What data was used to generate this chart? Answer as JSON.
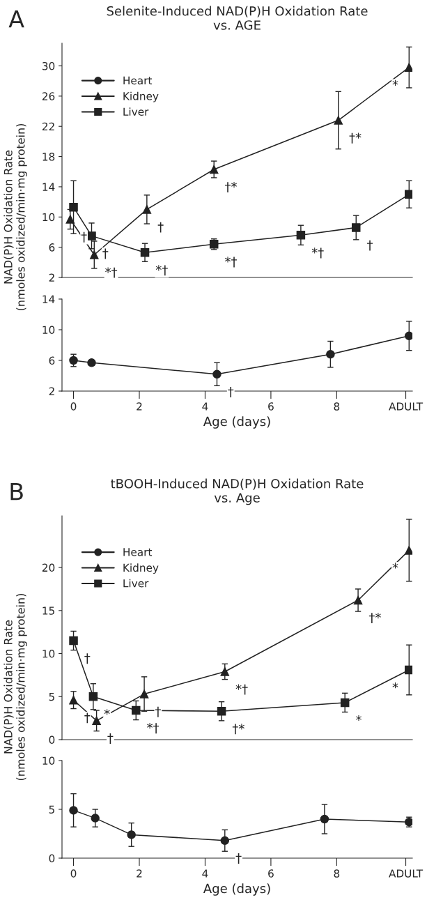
{
  "chart_data": [
    {
      "type": "line",
      "title": "Selenite-Induced NAD(P)H Oxidation Rate\nvs. AGE",
      "ylabel": "NAD(P)H Oxidation Rate\n(nmoles oxidized/min·mg protein)",
      "xlim": [
        -0.35,
        10.3
      ],
      "ylim": [
        2,
        33
      ],
      "yticks": [
        2,
        6,
        10,
        14,
        18,
        22,
        26,
        30
      ],
      "tick_labels": "y",
      "legend": "top left",
      "grid": false,
      "series": [
        {
          "name": "Kidney",
          "color": "#222222",
          "marker": "triangle",
          "x": [
            -0.1,
            0.63,
            2.23,
            4.27,
            8.05,
            10.2
          ],
          "values": [
            9.7,
            5.0,
            11.0,
            16.3,
            22.8,
            29.8
          ],
          "errors": [
            1.3,
            1.8,
            1.9,
            1.1,
            3.8,
            2.7
          ]
        },
        {
          "name": "Liver",
          "color": "#222222",
          "marker": "square",
          "x": [
            0.0,
            0.55,
            2.17,
            4.27,
            6.91,
            8.59,
            10.2
          ],
          "values": [
            11.3,
            7.5,
            5.3,
            6.4,
            7.6,
            8.6,
            13.0
          ],
          "errors": [
            3.5,
            1.7,
            1.2,
            0.7,
            1.3,
            1.6,
            1.8
          ]
        }
      ],
      "annotations": [
        "A",
        {
          "text": "†",
          "x": -0.1,
          "y": 9.7
        },
        {
          "text": "†",
          "x": 0.55,
          "y": 7.5
        },
        {
          "text": "*†",
          "x": 0.63,
          "y": 5.0
        },
        {
          "text": "†",
          "x": 2.23,
          "y": 11.0
        },
        {
          "text": "*†",
          "x": 2.17,
          "y": 5.3
        },
        {
          "text": "†*",
          "x": 4.27,
          "y": 16.3
        },
        {
          "text": "*†",
          "x": 4.27,
          "y": 6.4
        },
        {
          "text": "*†",
          "x": 6.91,
          "y": 7.6
        },
        {
          "text": "†*",
          "x": 8.05,
          "y": 22.8
        },
        {
          "text": "†",
          "x": 8.59,
          "y": 8.6
        },
        {
          "text": "*",
          "x": 10.2,
          "y": 29.8
        }
      ]
    },
    {
      "type": "line",
      "xlabel": "Age (days)",
      "xlim": [
        -0.35,
        10.3
      ],
      "ylim": [
        2,
        14
      ],
      "yticks": [
        2,
        6,
        10,
        14
      ],
      "xticks": [
        0,
        2,
        4,
        6,
        8,
        {
          "value": 10.1,
          "label": "ADULT"
        }
      ],
      "grid": false,
      "series": [
        {
          "name": "Heart",
          "color": "#222222",
          "marker": "circle",
          "x": [
            0.0,
            0.55,
            4.36,
            7.81,
            10.2
          ],
          "values": [
            6.0,
            5.7,
            4.2,
            6.8,
            9.2
          ],
          "errors": [
            0.8,
            0.3,
            1.5,
            1.7,
            1.9
          ]
        }
      ],
      "annotations": [
        {
          "text": "†",
          "x": 4.36,
          "y": 4.2
        }
      ]
    },
    {
      "type": "line",
      "title": "tBOOH-Induced NAD(P)H Oxidation Rate\nvs. Age",
      "ylabel": "NAD(P)H Oxidation Rate\n(nmoles oxidized/min·mg protein)",
      "xlim": [
        -0.35,
        10.3
      ],
      "ylim": [
        0,
        26
      ],
      "yticks": [
        0,
        5,
        10,
        15,
        20
      ],
      "tick_labels": "y",
      "legend": "top left",
      "grid": false,
      "series": [
        {
          "name": "Kidney",
          "color": "#222222",
          "marker": "triangle",
          "x": [
            0.0,
            0.7,
            2.15,
            4.6,
            8.65,
            10.2
          ],
          "values": [
            4.6,
            2.2,
            5.3,
            7.9,
            16.2,
            22.0
          ],
          "errors": [
            1.0,
            1.2,
            2.0,
            0.9,
            1.3,
            3.6
          ]
        },
        {
          "name": "Liver",
          "color": "#222222",
          "marker": "square",
          "x": [
            0.0,
            0.6,
            1.9,
            4.5,
            8.25,
            10.2
          ],
          "values": [
            11.5,
            5.0,
            3.4,
            3.3,
            4.3,
            8.1
          ],
          "errors": [
            1.1,
            1.5,
            1.1,
            1.1,
            1.1,
            2.9
          ]
        }
      ],
      "annotations": [
        "B",
        {
          "text": "†",
          "x": 0.0,
          "y": 11.5
        },
        {
          "text": "*",
          "x": 0.6,
          "y": 5.0
        },
        {
          "text": "†",
          "x": 0.0,
          "y": 4.6
        },
        {
          "text": "†",
          "x": 0.7,
          "y": 2.2
        },
        {
          "text": "†",
          "x": 2.15,
          "y": 5.3
        },
        {
          "text": "*†",
          "x": 1.9,
          "y": 3.4
        },
        {
          "text": "*†",
          "x": 4.6,
          "y": 7.9
        },
        {
          "text": "†*",
          "x": 4.5,
          "y": 3.3
        },
        {
          "text": "†*",
          "x": 8.65,
          "y": 16.2
        },
        {
          "text": "*",
          "x": 8.25,
          "y": 4.3
        },
        {
          "text": "*",
          "x": 10.2,
          "y": 22.0
        },
        {
          "text": "*",
          "x": 10.2,
          "y": 8.1
        }
      ]
    },
    {
      "type": "line",
      "xlabel": "Age (days)",
      "xlim": [
        -0.35,
        10.3
      ],
      "ylim": [
        0,
        10
      ],
      "yticks": [
        0,
        5,
        10
      ],
      "xticks": [
        0,
        2,
        4,
        6,
        8,
        {
          "value": 10.1,
          "label": "ADULT"
        }
      ],
      "grid": false,
      "series": [
        {
          "name": "Heart",
          "color": "#222222",
          "marker": "circle",
          "x": [
            0.0,
            0.66,
            1.76,
            4.6,
            7.63,
            10.2
          ],
          "values": [
            4.9,
            4.1,
            2.4,
            1.8,
            4.0,
            3.7
          ],
          "errors": [
            1.7,
            0.9,
            1.2,
            1.1,
            1.5,
            0.5
          ]
        }
      ],
      "annotations": [
        {
          "text": "†",
          "x": 4.6,
          "y": 1.8
        }
      ]
    }
  ]
}
